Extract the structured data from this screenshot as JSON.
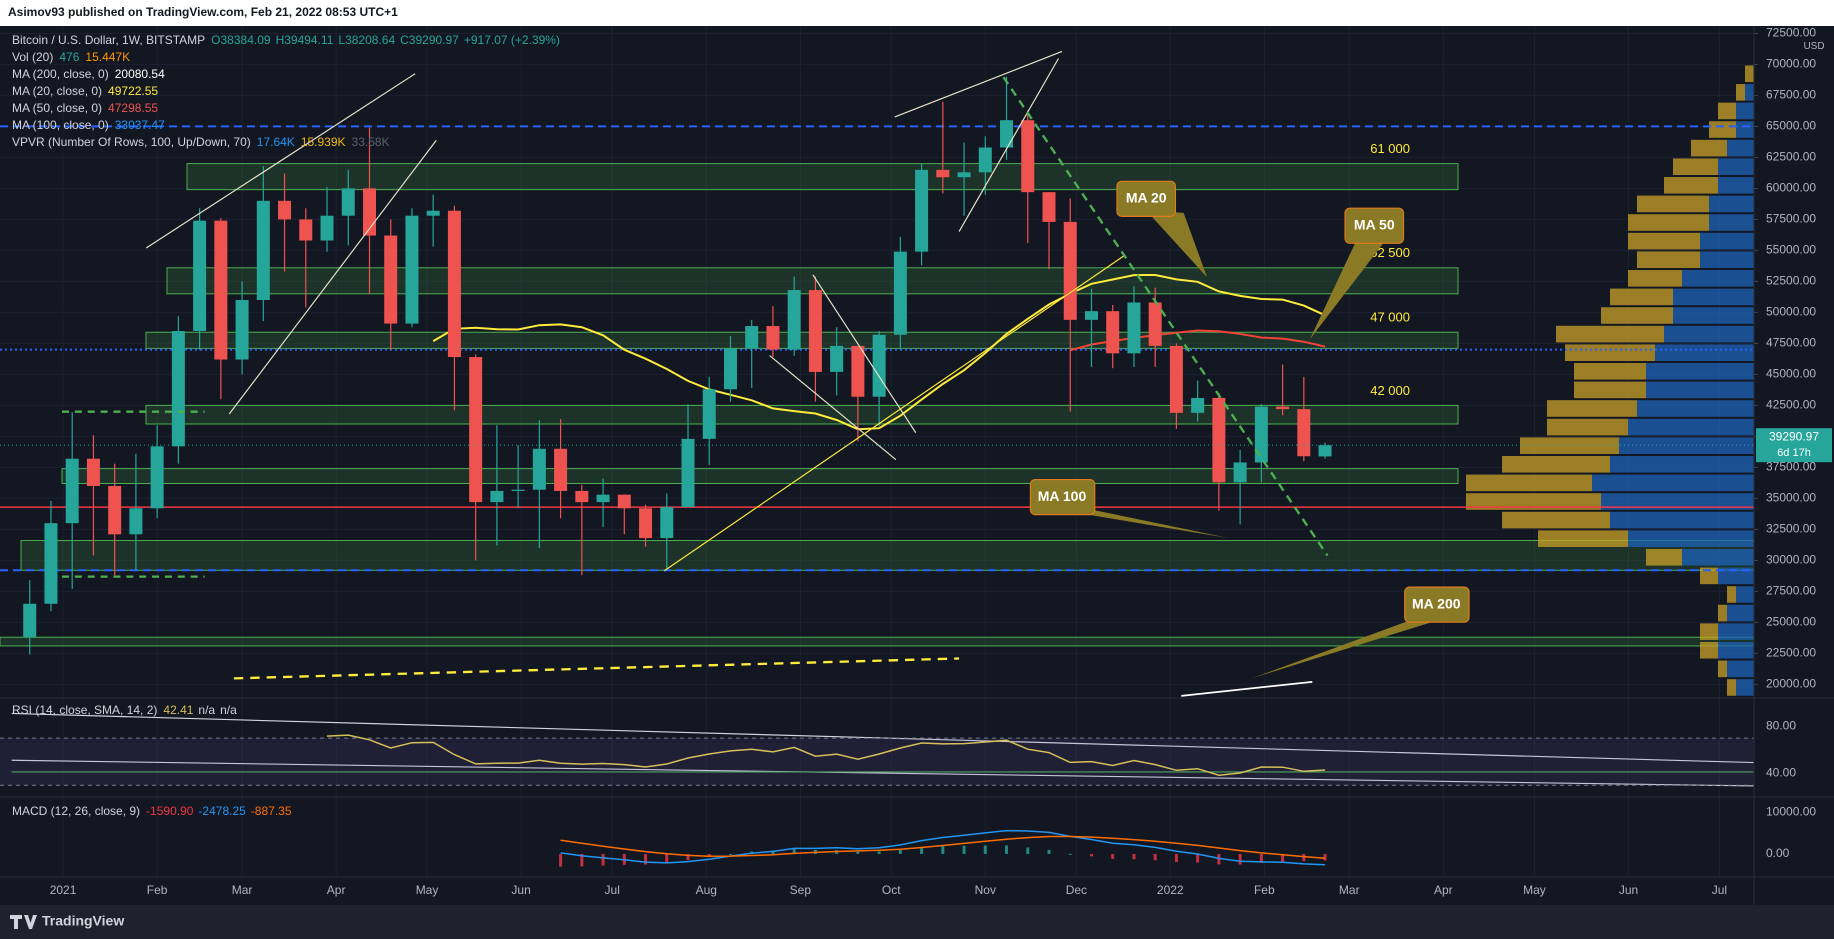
{
  "top_bar": {
    "text": "Asimov93 published on TradingView.com, Feb 21, 2022 08:53 UTC+1"
  },
  "footer": {
    "brand": "TradingView"
  },
  "chart_data": {
    "type": "candlestick",
    "title": "Bitcoin / U.S. Dollar, 1W, BITSTAMP",
    "ohlc_header": [
      "O38384.09",
      "H39494.11",
      "L38208.64",
      "C39290.97",
      "+917.07 (+2.39%)"
    ],
    "legend": [
      {
        "name": "Vol (20)",
        "values": [
          476,
          "15.447K"
        ],
        "colors": [
          "#26a69a",
          "#ff9800"
        ]
      },
      {
        "name": "MA (200, close, 0)",
        "values": [
          20080.54
        ],
        "colors": [
          "#ffffff"
        ]
      },
      {
        "name": "MA (20, close, 0)",
        "values": [
          49722.55
        ],
        "colors": [
          "#ffeb3b"
        ]
      },
      {
        "name": "MA (50, close, 0)",
        "values": [
          47298.55
        ],
        "colors": [
          "#ef5350"
        ]
      },
      {
        "name": "MA (100, close, 0)",
        "values": [
          33037.47
        ],
        "colors": [
          "#2196f3"
        ]
      },
      {
        "name": "VPVR (Number Of Rows, 100, Up/Down, 70)",
        "values": [
          "17.64K",
          "15.939K",
          "33.58K"
        ],
        "colors": [
          "#2196f3",
          "#f0b90b",
          "#5d606b"
        ]
      }
    ],
    "open": [
      23800,
      26500,
      33000,
      38200,
      36000,
      32100,
      34200,
      39200,
      48500,
      57400,
      46200,
      51000,
      59000,
      57500,
      55800,
      57800,
      60000,
      56200,
      49100,
      57800,
      58200,
      46400,
      34700,
      35600,
      35700,
      39000,
      35600,
      34700,
      35300,
      34200,
      31800,
      34300,
      39800,
      43800,
      47100,
      48900,
      47000,
      51800,
      45200,
      47300,
      43200,
      48200,
      54900,
      61500,
      60900,
      61300,
      63300,
      65500,
      59700,
      57300,
      49400,
      50100,
      46700,
      50800,
      47300,
      41900,
      43100,
      36300,
      37900,
      42400,
      42200,
      38384.09
    ],
    "high": [
      28400,
      34800,
      41950,
      40100,
      37800,
      38600,
      40900,
      49700,
      58400,
      57600,
      52500,
      61800,
      61200,
      58400,
      60100,
      61500,
      64900,
      57500,
      58400,
      59500,
      58600,
      46600,
      40900,
      39300,
      41300,
      41400,
      36100,
      36600,
      35300,
      34500,
      35400,
      42600,
      44800,
      48100,
      49400,
      50500,
      52900,
      52900,
      48800,
      47300,
      48500,
      56100,
      62000,
      67000,
      63700,
      64200,
      69000,
      66300,
      59700,
      59200,
      51900,
      50600,
      52100,
      52000,
      47500,
      44500,
      43500,
      38900,
      42600,
      45800,
      44800,
      39494.11
    ],
    "low": [
      22400,
      25900,
      27700,
      30400,
      28800,
      29200,
      33400,
      37800,
      47000,
      43000,
      45000,
      49300,
      53300,
      50400,
      54900,
      55400,
      51500,
      47000,
      48800,
      55300,
      42100,
      30000,
      31200,
      34200,
      31000,
      33400,
      28800,
      32700,
      32100,
      31100,
      29300,
      34300,
      37700,
      42800,
      43900,
      46400,
      46500,
      42800,
      43300,
      39600,
      40800,
      47000,
      53800,
      59600,
      57800,
      59500,
      62300,
      55600,
      53500,
      42000,
      45600,
      45500,
      45600,
      45600,
      40600,
      41200,
      34000,
      32900,
      36300,
      41700,
      38000,
      38208.64
    ],
    "close": [
      26500,
      33000,
      38200,
      36000,
      32100,
      34200,
      39200,
      48500,
      57400,
      46200,
      51000,
      59000,
      57500,
      55800,
      57800,
      60000,
      56200,
      49100,
      57800,
      58200,
      46400,
      34700,
      35600,
      35700,
      39000,
      35600,
      34700,
      35300,
      34200,
      31800,
      34300,
      39800,
      43800,
      47100,
      48900,
      47000,
      51800,
      45200,
      47300,
      43200,
      48200,
      54900,
      61500,
      60900,
      61300,
      63300,
      65500,
      59700,
      57300,
      49400,
      50100,
      46700,
      50800,
      47300,
      41900,
      43100,
      36300,
      37900,
      42400,
      42200,
      38400,
      39290.97
    ],
    "up_color": "#26a69a",
    "down_color": "#ef5350",
    "xlim": [
      -1.4,
      81.2
    ],
    "xticks": [
      {
        "value": 1.57,
        "label": "2021"
      },
      {
        "value": 6.0,
        "label": "Feb"
      },
      {
        "value": 10.0,
        "label": "Mar"
      },
      {
        "value": 14.43,
        "label": "Apr"
      },
      {
        "value": 18.71,
        "label": "May"
      },
      {
        "value": 23.14,
        "label": "Jun"
      },
      {
        "value": 27.43,
        "label": "Jul"
      },
      {
        "value": 31.86,
        "label": "Aug"
      },
      {
        "value": 36.29,
        "label": "Sep"
      },
      {
        "value": 40.57,
        "label": "Oct"
      },
      {
        "value": 45.0,
        "label": "Nov"
      },
      {
        "value": 49.29,
        "label": "Dec"
      },
      {
        "value": 53.71,
        "label": "2022"
      },
      {
        "value": 58.14,
        "label": "Feb"
      },
      {
        "value": 62.14,
        "label": "Mar"
      },
      {
        "value": 66.57,
        "label": "Apr"
      },
      {
        "value": 70.86,
        "label": "May"
      },
      {
        "value": 75.29,
        "label": "Jun"
      },
      {
        "value": 79.57,
        "label": "Jul"
      }
    ],
    "ylim": [
      18900,
      73100
    ],
    "yticks": [
      {
        "value": 20000,
        "label": "20000.00"
      },
      {
        "value": 22500,
        "label": "22500.00"
      },
      {
        "value": 25000,
        "label": "25000.00"
      },
      {
        "value": 27500,
        "label": "27500.00"
      },
      {
        "value": 30000,
        "label": "30000.00"
      },
      {
        "value": 32500,
        "label": "32500.00"
      },
      {
        "value": 35000,
        "label": "35000.00"
      },
      {
        "value": 37500,
        "label": "37500.00"
      },
      {
        "value": 40000,
        "label": "40000.00"
      },
      {
        "value": 42500,
        "label": "42500.00"
      },
      {
        "value": 45000,
        "label": "45000.00"
      },
      {
        "value": 47500,
        "label": "47500.00"
      },
      {
        "value": 50000,
        "label": "50000.00"
      },
      {
        "value": 52500,
        "label": "52500.00"
      },
      {
        "value": 55000,
        "label": "55000.00"
      },
      {
        "value": 57500,
        "label": "57500.00"
      },
      {
        "value": 60000,
        "label": "60000.00"
      },
      {
        "value": 62500,
        "label": "62500.00"
      },
      {
        "value": 65000,
        "label": "65000.00"
      },
      {
        "value": 67500,
        "label": "67500.00"
      },
      {
        "value": 70000,
        "label": "70000.00"
      },
      {
        "value": 72500,
        "label": "72500.00"
      }
    ],
    "y_unit": "USD",
    "grid": true,
    "countdown": "6d 17h",
    "zones": [
      {
        "label": "61 000",
        "low": 59900,
        "high": 62000
      },
      {
        "label": "52 500",
        "low": 51500,
        "high": 53600
      },
      {
        "label": "47 000",
        "low": 47100,
        "high": 48400
      },
      {
        "label": "42 000",
        "low": 41000,
        "high": 42500
      },
      {
        "low": 36200,
        "high": 37400
      },
      {
        "low": 29200,
        "high": 31600
      },
      {
        "low": 23100,
        "high": 23800
      }
    ],
    "levels": [
      {
        "value": 65000,
        "color": "#2962ff",
        "style": "dashed"
      },
      {
        "value": 47000,
        "color": "#2962ff",
        "style": "dotted"
      },
      {
        "value": 34300,
        "color": "#f23645",
        "style": "solid"
      },
      {
        "value": 29200,
        "color": "#2962ff",
        "style": "dashed"
      }
    ],
    "moving_averages": [
      {
        "period": 20,
        "color": "#ffeb3b"
      },
      {
        "period": 50,
        "color": "#f44336"
      }
    ],
    "callouts": [
      "MA 20",
      "MA 50",
      "MA 100",
      "MA 200"
    ],
    "vpvr": {
      "bins": [
        19000,
        20500,
        22000,
        23500,
        25000,
        26500,
        28000,
        29500,
        31000,
        32500,
        34000,
        35500,
        37000,
        38500,
        40000,
        41500,
        43000,
        44500,
        46000,
        47500,
        49000,
        50500,
        52000,
        53500,
        55000,
        56500,
        58000,
        59500,
        61000,
        62500,
        64000,
        65500,
        67000,
        68500,
        70000
      ],
      "up": [
        2,
        3,
        4,
        4,
        3,
        2,
        4,
        8,
        14,
        16,
        17,
        18,
        16,
        15,
        14,
        13,
        12,
        12,
        11,
        10,
        9,
        9,
        8,
        6,
        6,
        5,
        5,
        4,
        4,
        3,
        2,
        2,
        1,
        0
      ],
      "down": [
        1,
        1,
        2,
        2,
        1,
        1,
        2,
        4,
        10,
        12,
        15,
        14,
        12,
        11,
        9,
        10,
        8,
        8,
        10,
        12,
        8,
        7,
        6,
        7,
        8,
        9,
        8,
        6,
        5,
        4,
        3,
        2,
        1,
        1
      ],
      "up_color": "#1e63b8",
      "down_color": "#c9a227"
    }
  },
  "rsi": {
    "title": "RSI (14, close, SMA, 14, 2)",
    "values_text": [
      42.41,
      "n/a",
      "n/a"
    ],
    "period": 14,
    "color": "#d4bf5a",
    "ylim": [
      20,
      104
    ],
    "yticks": [
      {
        "value": 40,
        "label": "40.00"
      },
      {
        "value": 80,
        "label": "80.00"
      }
    ],
    "band": [
      30,
      70
    ]
  },
  "macd": {
    "title": "MACD (12, 26, close, 9)",
    "values_text": [
      "-1590.90",
      "-2478.25",
      "-887.35"
    ],
    "fast": 12,
    "slow": 26,
    "signal": 9,
    "macd_color": "#2196f3",
    "signal_color": "#ff6d00",
    "ylim": [
      -5500,
      13600
    ],
    "yticks": [
      {
        "value": 0,
        "label": "0.00"
      },
      {
        "value": 10000,
        "label": "10000.00"
      }
    ]
  }
}
